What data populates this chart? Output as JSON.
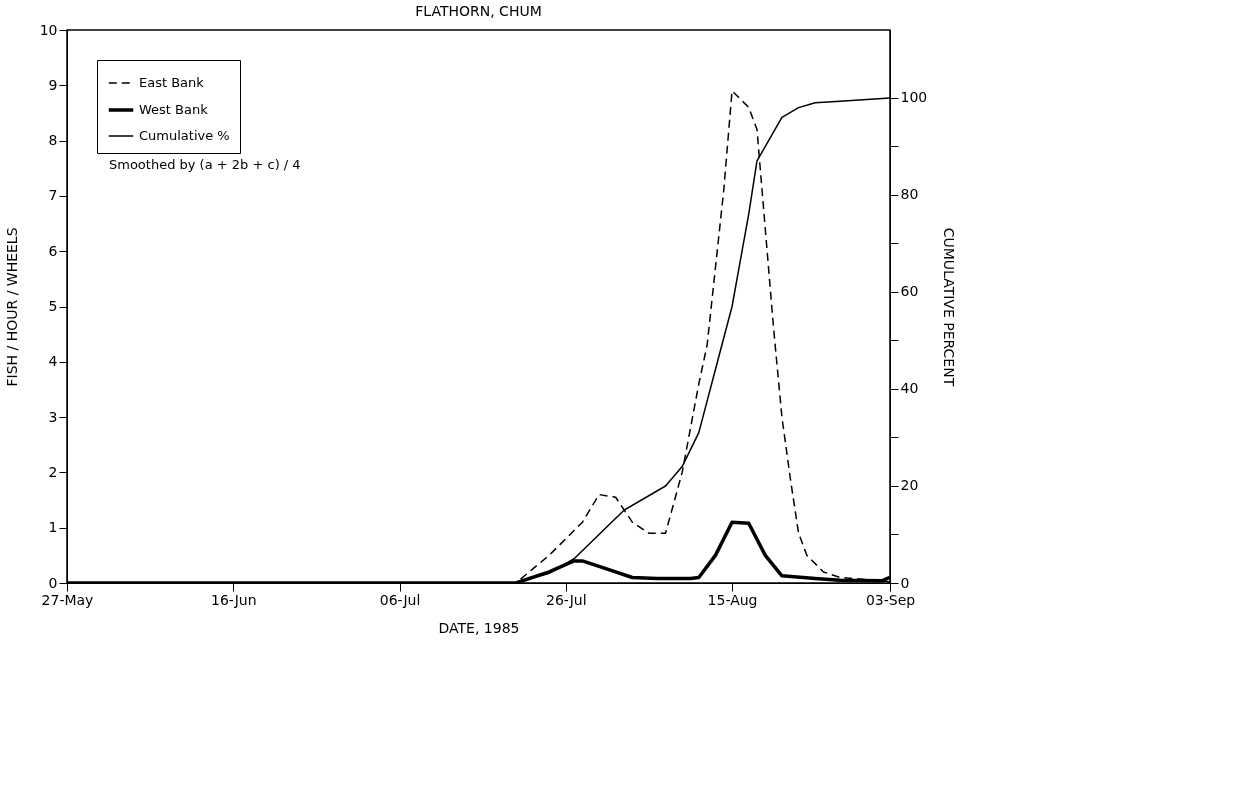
{
  "chart_data": {
    "type": "line",
    "title": "FLATHORN, CHUM",
    "xlabel": "DATE, 1985",
    "ylabel": "FISH / HOUR / WHEELS",
    "y2label": "CUMULATIVE PERCENT",
    "xlim": [
      "1985-05-27",
      "1985-09-03"
    ],
    "xticks": [
      {
        "value": "1985-05-27",
        "label": "27-May"
      },
      {
        "value": "1985-06-16",
        "label": "16-Jun"
      },
      {
        "value": "1985-07-06",
        "label": "06-Jul"
      },
      {
        "value": "1985-07-26",
        "label": "26-Jul"
      },
      {
        "value": "1985-08-15",
        "label": "15-Aug"
      },
      {
        "value": "1985-09-03",
        "label": "03-Sep"
      }
    ],
    "ylim": [
      0,
      10
    ],
    "yticks": [
      0,
      1,
      2,
      3,
      4,
      5,
      6,
      7,
      8,
      9,
      10
    ],
    "y2lim": [
      0,
      114
    ],
    "y2ticks": [
      0,
      {
        "value": 10,
        "label": null
      },
      20,
      {
        "value": 30,
        "label": null
      },
      40,
      {
        "value": 50,
        "label": null
      },
      60,
      {
        "value": 70,
        "label": null
      },
      80,
      {
        "value": 90,
        "label": null
      },
      100
    ],
    "grid": false,
    "legend": "top left",
    "annotations": [
      "Smoothed by (a + 2b + c) / 4"
    ],
    "series": [
      {
        "name": "East Bank",
        "color": "#000000",
        "line_style": "dashed",
        "x": [
          "1985-05-27",
          "1985-07-20",
          "1985-07-22",
          "1985-07-24",
          "1985-07-26",
          "1985-07-28",
          "1985-07-30",
          "1985-08-01",
          "1985-08-03",
          "1985-08-05",
          "1985-08-07",
          "1985-08-09",
          "1985-08-11",
          "1985-08-12",
          "1985-08-14",
          "1985-08-15",
          "1985-08-17",
          "1985-08-18",
          "1985-08-20",
          "1985-08-21",
          "1985-08-22",
          "1985-08-23",
          "1985-08-24",
          "1985-08-26",
          "1985-08-28",
          "1985-09-02",
          "1985-09-03"
        ],
        "values": [
          0,
          0,
          0.25,
          0.5,
          0.8,
          1.1,
          1.6,
          1.55,
          1.1,
          0.9,
          0.9,
          2.0,
          3.6,
          4.3,
          7.1,
          8.9,
          8.6,
          8.2,
          4.6,
          3.0,
          1.9,
          0.9,
          0.5,
          0.2,
          0.1,
          0.04,
          0.02
        ]
      },
      {
        "name": "West Bank",
        "color": "#000000",
        "line_style": "solid",
        "x": [
          "1985-05-27",
          "1985-07-20",
          "1985-07-24",
          "1985-07-27",
          "1985-07-28",
          "1985-07-31",
          "1985-08-03",
          "1985-08-06",
          "1985-08-10",
          "1985-08-11",
          "1985-08-13",
          "1985-08-15",
          "1985-08-17",
          "1985-08-19",
          "1985-08-21",
          "1985-08-25",
          "1985-08-28",
          "1985-09-02",
          "1985-09-03"
        ],
        "values": [
          0,
          0,
          0.2,
          0.4,
          0.4,
          0.25,
          0.1,
          0.08,
          0.08,
          0.1,
          0.5,
          1.1,
          1.08,
          0.5,
          0.13,
          0.08,
          0.05,
          0.04,
          0.1
        ]
      },
      {
        "name": "Cumulative %",
        "color": "#000000",
        "line_style": "solid",
        "axis": "y2",
        "x": [
          "1985-05-27",
          "1985-07-20",
          "1985-07-24",
          "1985-07-27",
          "1985-07-30",
          "1985-08-02",
          "1985-08-07",
          "1985-08-09",
          "1985-08-11",
          "1985-08-13",
          "1985-08-15",
          "1985-08-17",
          "1985-08-18",
          "1985-08-20",
          "1985-08-21",
          "1985-08-23",
          "1985-08-25",
          "1985-08-28",
          "1985-09-03"
        ],
        "values": [
          0,
          0,
          2,
          5,
          10,
          15,
          20,
          24,
          31,
          44,
          57,
          76,
          87,
          93,
          96,
          98,
          99,
          99.3,
          100
        ]
      }
    ]
  }
}
